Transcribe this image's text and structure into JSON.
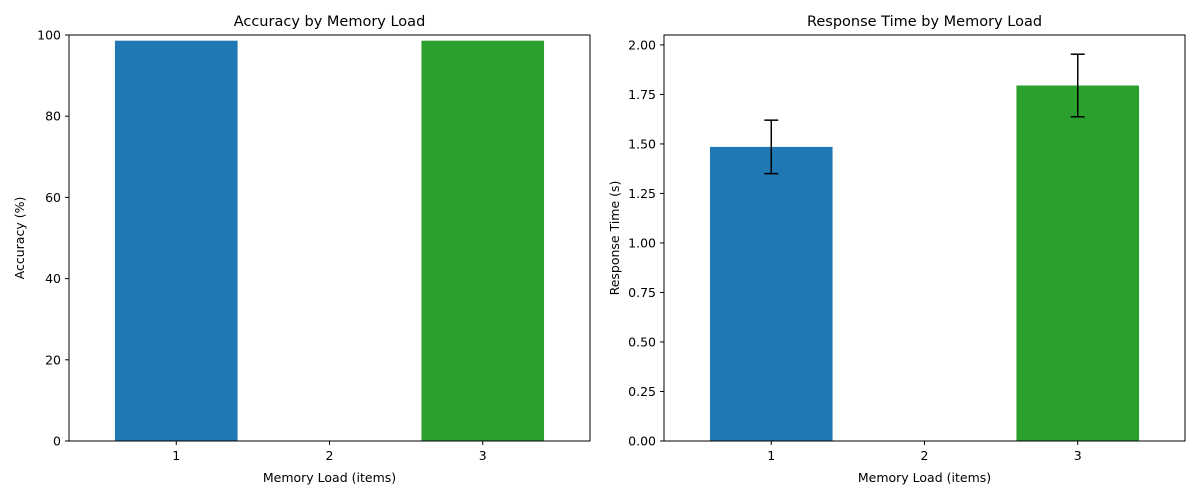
{
  "chart_data": [
    {
      "type": "bar",
      "title": "Accuracy by Memory Load",
      "xlabel": "Memory Load (items)",
      "ylabel": "Accuracy (%)",
      "categories": [
        "1",
        "2",
        "3"
      ],
      "values": [
        98.6,
        0,
        98.6
      ],
      "colors": [
        "#1f77b4",
        "#ff7f0e",
        "#2ca02c"
      ],
      "ylim": [
        0,
        100
      ],
      "yticks": [
        0,
        20,
        40,
        60,
        80,
        100
      ],
      "ytick_labels": [
        "0",
        "20",
        "40",
        "60",
        "80",
        "100"
      ],
      "grid": false
    },
    {
      "type": "bar",
      "title": "Response Time by Memory Load",
      "xlabel": "Memory Load (items)",
      "ylabel": "Response Time (s)",
      "categories": [
        "1",
        "2",
        "3"
      ],
      "values": [
        1.485,
        0,
        1.795
      ],
      "errors": [
        0.135,
        0,
        0.158
      ],
      "colors": [
        "#1f77b4",
        "#ff7f0e",
        "#2ca02c"
      ],
      "ylim": [
        0,
        2.05
      ],
      "yticks": [
        0,
        0.25,
        0.5,
        0.75,
        1.0,
        1.25,
        1.5,
        1.75,
        2.0
      ],
      "ytick_labels": [
        "0.00",
        "0.25",
        "0.50",
        "0.75",
        "1.00",
        "1.25",
        "1.50",
        "1.75",
        "2.00"
      ],
      "grid": false
    }
  ]
}
